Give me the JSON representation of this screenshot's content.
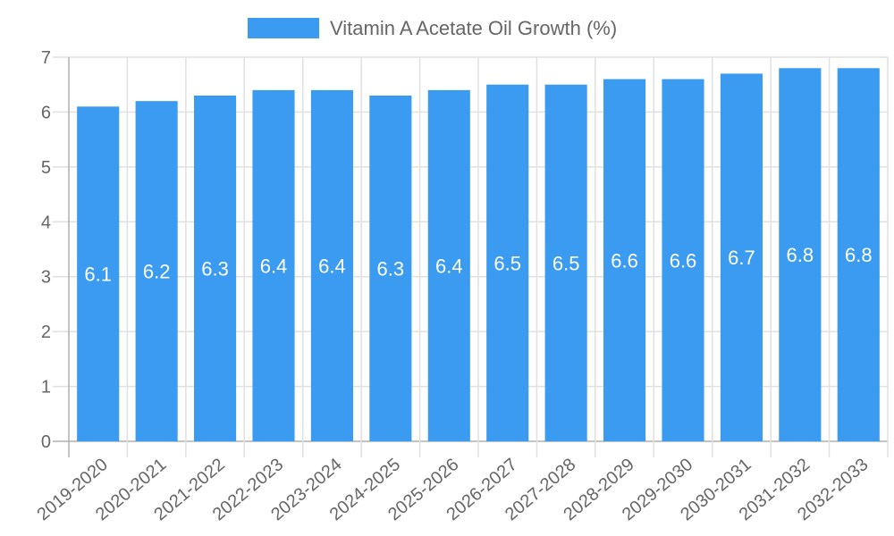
{
  "chart_data": {
    "type": "bar",
    "title": "",
    "xlabel": "",
    "ylabel": "",
    "ylim": [
      0,
      7
    ],
    "yticks": [
      0,
      1,
      2,
      3,
      4,
      5,
      6,
      7
    ],
    "grid": true,
    "legend_position": "top",
    "categories": [
      "2019-2020",
      "2020-2021",
      "2021-2022",
      "2022-2023",
      "2023-2024",
      "2024-2025",
      "2025-2026",
      "2026-2027",
      "2027-2028",
      "2028-2029",
      "2029-2030",
      "2030-2031",
      "2031-2032",
      "2032-2033"
    ],
    "series": [
      {
        "name": "Vitamin A Acetate Oil Growth (%)",
        "color": "#3a9bf0",
        "values": [
          6.1,
          6.2,
          6.3,
          6.4,
          6.4,
          6.3,
          6.4,
          6.5,
          6.5,
          6.6,
          6.6,
          6.7,
          6.8,
          6.8
        ],
        "data_labels": [
          "6.1",
          "6.2",
          "6.3",
          "6.4",
          "6.4",
          "6.3",
          "6.4",
          "6.5",
          "6.5",
          "6.6",
          "6.6",
          "6.7",
          "6.8",
          "6.8"
        ]
      }
    ]
  },
  "legend": {
    "label": "Vitamin A Acetate Oil Growth (%)"
  }
}
